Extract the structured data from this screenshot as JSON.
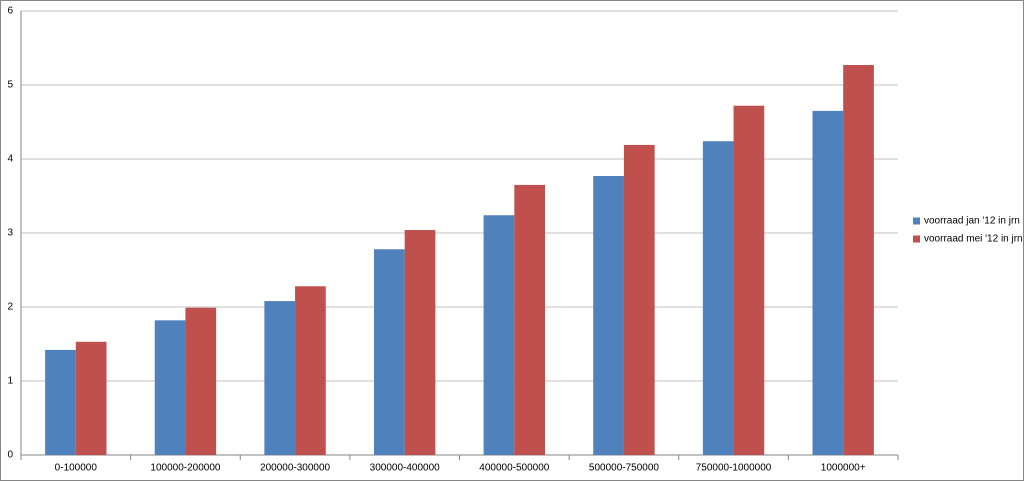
{
  "chart_data": {
    "type": "bar",
    "categories": [
      "0-100000",
      "100000-200000",
      "200000-300000",
      "300000-400000",
      "400000-500000",
      "500000-750000",
      "750000-1000000",
      "1000000+"
    ],
    "series": [
      {
        "name": "voorraad jan '12 in jrn",
        "color": "#4f81bd",
        "values": [
          1.42,
          1.82,
          2.08,
          2.78,
          3.24,
          3.77,
          4.24,
          4.65
        ]
      },
      {
        "name": "voorraad mei '12 in jrn",
        "color": "#c0504d",
        "values": [
          1.53,
          1.99,
          2.28,
          3.04,
          3.65,
          4.19,
          4.72,
          5.27
        ]
      }
    ],
    "ylim": [
      0,
      6
    ],
    "yticks": [
      0,
      1,
      2,
      3,
      4,
      5,
      6
    ],
    "grid": true,
    "legend": "right"
  }
}
